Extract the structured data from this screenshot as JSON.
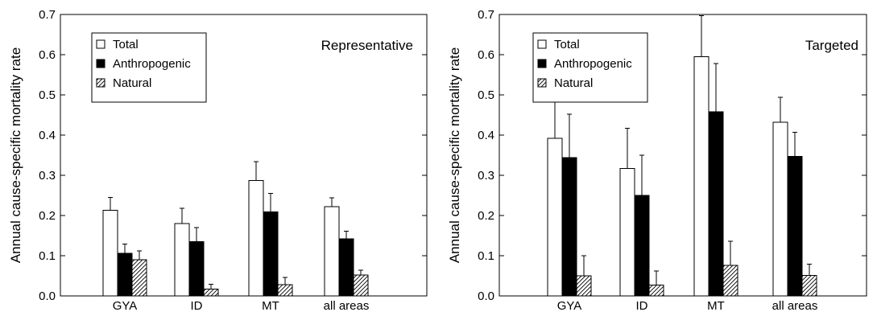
{
  "chart_data": [
    {
      "type": "bar",
      "title": "Representative",
      "ylabel": "Annual cause-specific mortality rate",
      "xlabel": "",
      "ylim": [
        0,
        0.7
      ],
      "yticks": [
        "0.0",
        "0.1",
        "0.2",
        "0.3",
        "0.4",
        "0.5",
        "0.6",
        "0.7"
      ],
      "categories": [
        "GYA",
        "ID",
        "MT",
        "all areas"
      ],
      "legend_position": "top-left",
      "series": [
        {
          "name": "Total",
          "fill": "open",
          "values": [
            0.213,
            0.18,
            0.287,
            0.222
          ],
          "error": [
            0.032,
            0.038,
            0.047,
            0.022
          ]
        },
        {
          "name": "Anthropogenic",
          "fill": "solid",
          "values": [
            0.106,
            0.135,
            0.209,
            0.142
          ],
          "error": [
            0.023,
            0.035,
            0.046,
            0.019
          ]
        },
        {
          "name": "Natural",
          "fill": "hatched",
          "values": [
            0.09,
            0.017,
            0.028,
            0.052
          ],
          "error": [
            0.022,
            0.012,
            0.018,
            0.012
          ]
        }
      ]
    },
    {
      "type": "bar",
      "title": "Targeted",
      "ylabel": "Annual cause-specific mortality rate",
      "xlabel": "",
      "ylim": [
        0,
        0.7
      ],
      "yticks": [
        "0.0",
        "0.1",
        "0.2",
        "0.3",
        "0.4",
        "0.5",
        "0.6",
        "0.7"
      ],
      "categories": [
        "GYA",
        "ID",
        "MT",
        "all areas"
      ],
      "legend_position": "top-left",
      "series": [
        {
          "name": "Total",
          "fill": "open",
          "values": [
            0.392,
            0.317,
            0.595,
            0.432
          ],
          "error": [
            0.09,
            0.1,
            0.102,
            0.062
          ]
        },
        {
          "name": "Anthropogenic",
          "fill": "solid",
          "values": [
            0.344,
            0.25,
            0.458,
            0.347
          ],
          "error": [
            0.108,
            0.1,
            0.12,
            0.06
          ]
        },
        {
          "name": "Natural",
          "fill": "hatched",
          "values": [
            0.05,
            0.027,
            0.076,
            0.051
          ],
          "error": [
            0.05,
            0.035,
            0.06,
            0.028
          ]
        }
      ]
    }
  ]
}
